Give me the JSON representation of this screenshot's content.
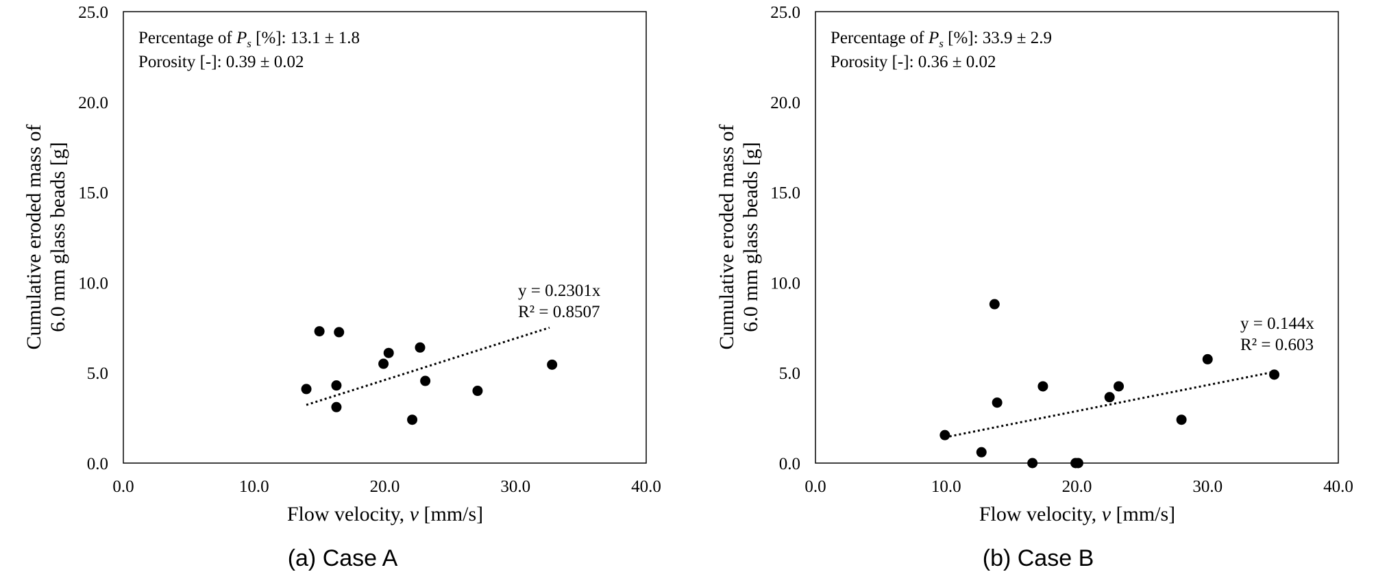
{
  "chart_data": [
    {
      "type": "scatter",
      "caption": "(a) Case A",
      "xlabel_prefix": "Flow velocity, ",
      "xlabel_var": "v",
      "xlabel_suffix": " [mm/s]",
      "ylabel_line1": "Cumulative eroded  mass of",
      "ylabel_line2": "6.0 mm glass beads [g]",
      "xlim": [
        0,
        40
      ],
      "ylim": [
        0,
        25
      ],
      "xticks": [
        "0.0",
        "10.0",
        "20.0",
        "30.0",
        "40.0"
      ],
      "yticks": [
        "0.0",
        "5.0",
        "10.0",
        "15.0",
        "20.0",
        "25.0"
      ],
      "stats": {
        "ps_prefix": "Percentage of ",
        "ps_var": "P",
        "ps_sub": "s",
        "ps_suffix": " [%]: 13.1 ± 1.8",
        "porosity": "Porosity [-]: 0.39 ± 0.02"
      },
      "trendline": {
        "equation": "y = 0.2301x",
        "r2": "R² = 0.8507",
        "slope": 0.2301,
        "x_start": 14.0,
        "x_end": 32.6
      },
      "points": [
        {
          "x": 14.0,
          "y": 4.1
        },
        {
          "x": 15.0,
          "y": 7.3
        },
        {
          "x": 16.3,
          "y": 4.3
        },
        {
          "x": 16.3,
          "y": 3.1
        },
        {
          "x": 16.5,
          "y": 7.25
        },
        {
          "x": 19.9,
          "y": 5.5
        },
        {
          "x": 20.3,
          "y": 6.1
        },
        {
          "x": 22.1,
          "y": 2.4
        },
        {
          "x": 22.7,
          "y": 6.4
        },
        {
          "x": 23.1,
          "y": 4.55
        },
        {
          "x": 27.1,
          "y": 4.0
        },
        {
          "x": 32.8,
          "y": 5.45
        }
      ]
    },
    {
      "type": "scatter",
      "caption": "(b) Case B",
      "xlabel_prefix": "Flow velocity, ",
      "xlabel_var": "v",
      "xlabel_suffix": " [mm/s]",
      "ylabel_line1": "Cumulative eroded  mass of",
      "ylabel_line2": "6.0 mm glass beads [g]",
      "xlim": [
        0,
        40
      ],
      "ylim": [
        0,
        25
      ],
      "xticks": [
        "0.0",
        "10.0",
        "20.0",
        "30.0",
        "40.0"
      ],
      "yticks": [
        "0.0",
        "5.0",
        "10.0",
        "15.0",
        "20.0",
        "25.0"
      ],
      "stats": {
        "ps_prefix": "Percentage of ",
        "ps_var": "P",
        "ps_sub": "s",
        "ps_suffix": " [%]: 33.9 ± 2.9",
        "porosity": "Porosity [-]: 0.36 ± 0.02"
      },
      "trendline": {
        "equation": "y = 0.144x",
        "r2": "R² = 0.603",
        "slope": 0.144,
        "x_start": 9.9,
        "x_end": 35.0
      },
      "points": [
        {
          "x": 9.9,
          "y": 1.55
        },
        {
          "x": 12.7,
          "y": 0.6
        },
        {
          "x": 13.7,
          "y": 8.8
        },
        {
          "x": 13.9,
          "y": 3.35
        },
        {
          "x": 16.6,
          "y": 0.0
        },
        {
          "x": 17.4,
          "y": 4.25
        },
        {
          "x": 19.9,
          "y": 0.0
        },
        {
          "x": 20.1,
          "y": 0.0
        },
        {
          "x": 22.5,
          "y": 3.65
        },
        {
          "x": 23.2,
          "y": 4.25
        },
        {
          "x": 28.0,
          "y": 2.4
        },
        {
          "x": 30.0,
          "y": 5.75
        },
        {
          "x": 35.1,
          "y": 4.9
        }
      ]
    }
  ]
}
